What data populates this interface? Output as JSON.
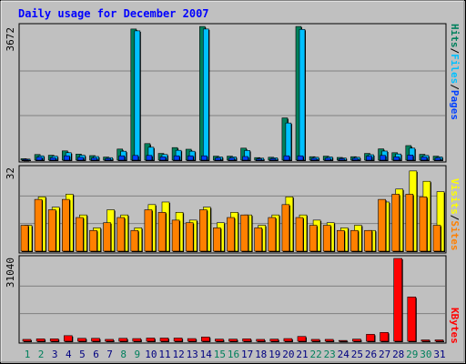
{
  "title": "Daily usage for December 2007",
  "colors": {
    "background": "#c0c0c0",
    "title": "#0000ff",
    "hits": "#00805c",
    "files": "#00c0ff",
    "pages": "#0040ff",
    "visits": "#ffff00",
    "sites": "#ff8000",
    "kbytes": "#ff0000",
    "weekend_label": "#00805c",
    "weekday_label": "#000080"
  },
  "chart_data": [
    {
      "type": "bar",
      "panel": "hits-files-pages",
      "ymax_label": "3672",
      "ylim": [
        0,
        3672
      ],
      "legend": {
        "pages": "Pages",
        "sep1": "/",
        "files": "Files",
        "sep2": "/",
        "hits": "Hits"
      },
      "categories": [
        "1",
        "2",
        "3",
        "4",
        "5",
        "6",
        "7",
        "8",
        "9",
        "10",
        "11",
        "12",
        "13",
        "14",
        "15",
        "16",
        "17",
        "18",
        "19",
        "20",
        "21",
        "22",
        "23",
        "24",
        "25",
        "26",
        "27",
        "28",
        "29",
        "30",
        "31"
      ],
      "series": [
        {
          "name": "Hits",
          "values": [
            40,
            155,
            135,
            255,
            165,
            125,
            85,
            305,
            3600,
            455,
            185,
            345,
            300,
            3670,
            110,
            110,
            330,
            70,
            80,
            1160,
            3670,
            95,
            110,
            75,
            95,
            185,
            310,
            205,
            400,
            160,
            110
          ]
        },
        {
          "name": "Files",
          "values": [
            30,
            120,
            110,
            205,
            135,
            100,
            70,
            245,
            3550,
            355,
            155,
            270,
            245,
            3600,
            90,
            90,
            265,
            55,
            65,
            1020,
            3590,
            80,
            90,
            60,
            80,
            150,
            250,
            170,
            330,
            130,
            90
          ]
        },
        {
          "name": "Pages",
          "values": [
            20,
            80,
            65,
            120,
            80,
            60,
            45,
            120,
            130,
            130,
            90,
            120,
            120,
            120,
            60,
            60,
            100,
            35,
            40,
            120,
            120,
            50,
            55,
            40,
            50,
            110,
            130,
            90,
            140,
            85,
            60
          ]
        }
      ]
    },
    {
      "type": "bar",
      "panel": "visits-sites",
      "ymax_label": "32",
      "ylim": [
        0,
        32
      ],
      "legend": {
        "sites": "Sites",
        "sep": "/",
        "visits": "Visits"
      },
      "categories": [
        "1",
        "2",
        "3",
        "4",
        "5",
        "6",
        "7",
        "8",
        "9",
        "10",
        "11",
        "12",
        "13",
        "14",
        "15",
        "16",
        "17",
        "18",
        "19",
        "20",
        "21",
        "22",
        "23",
        "24",
        "25",
        "26",
        "27",
        "28",
        "29",
        "30",
        "31"
      ],
      "series": [
        {
          "name": "Visits",
          "values": [
            10,
            21,
            17,
            22,
            14,
            9,
            16,
            14,
            9,
            18,
            19,
            15,
            12,
            17,
            11,
            15,
            14,
            10,
            14,
            21,
            14,
            12,
            11,
            9,
            10,
            8,
            19,
            24,
            31,
            27,
            23
          ]
        },
        {
          "name": "Sites",
          "values": [
            10,
            20,
            16,
            20,
            13,
            8,
            11,
            13,
            8,
            16,
            15,
            12,
            11,
            16,
            9,
            13,
            14,
            9,
            13,
            18,
            13,
            10,
            10,
            8,
            8,
            8,
            20,
            22,
            22,
            21,
            10
          ]
        }
      ]
    },
    {
      "type": "bar",
      "panel": "kbytes",
      "ymax_label": "31040",
      "ylim": [
        0,
        31040
      ],
      "legend": {
        "kbytes": "KBytes"
      },
      "categories": [
        "1",
        "2",
        "3",
        "4",
        "5",
        "6",
        "7",
        "8",
        "9",
        "10",
        "11",
        "12",
        "13",
        "14",
        "15",
        "16",
        "17",
        "18",
        "19",
        "20",
        "21",
        "22",
        "23",
        "24",
        "25",
        "26",
        "27",
        "28",
        "29",
        "30",
        "31"
      ],
      "series": [
        {
          "name": "KBytes",
          "values": [
            700,
            900,
            900,
            2100,
            1100,
            1100,
            700,
            1100,
            1000,
            1200,
            1200,
            1200,
            1000,
            1600,
            800,
            800,
            900,
            700,
            800,
            1000,
            1800,
            700,
            700,
            300,
            800,
            2600,
            3300,
            31040,
            16600,
            500,
            500
          ]
        }
      ]
    }
  ],
  "x_labels": {
    "days": [
      "1",
      "2",
      "3",
      "4",
      "5",
      "6",
      "7",
      "8",
      "9",
      "10",
      "11",
      "12",
      "13",
      "14",
      "15",
      "16",
      "17",
      "18",
      "19",
      "20",
      "21",
      "22",
      "23",
      "24",
      "25",
      "26",
      "27",
      "28",
      "29",
      "30",
      "31"
    ],
    "weekend_days": [
      "1",
      "2",
      "8",
      "9",
      "15",
      "16",
      "22",
      "23",
      "29",
      "30"
    ]
  }
}
